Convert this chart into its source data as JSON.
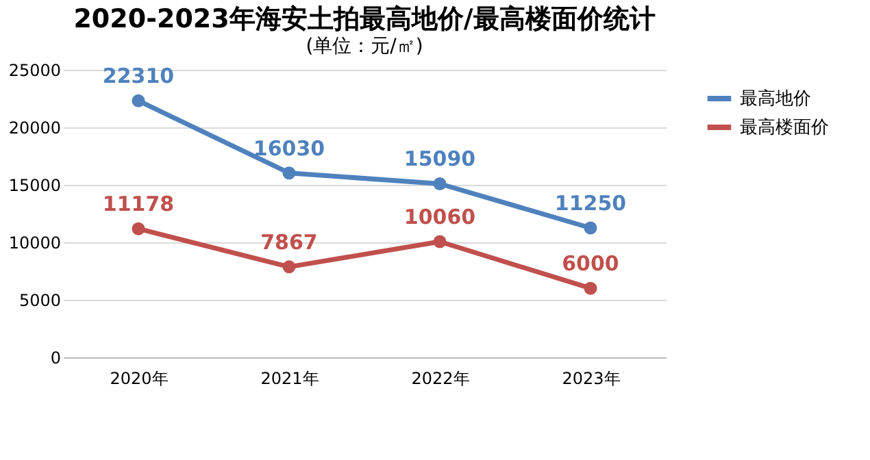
{
  "chart_data": {
    "type": "line",
    "title": "2020-2023年海安土拍最高地价/最高楼面价统计",
    "subtitle": "(单位：元/㎡)",
    "categories": [
      "2020年",
      "2021年",
      "2022年",
      "2023年"
    ],
    "series": [
      {
        "name": "最高地价",
        "color": "#4f81bd",
        "values": [
          22310,
          16030,
          15090,
          11250
        ]
      },
      {
        "name": "最高楼面价",
        "color": "#c0504d",
        "values": [
          11178,
          7867,
          10060,
          6000
        ]
      }
    ],
    "ylim": [
      0,
      25000
    ],
    "yticks": [
      0,
      5000,
      10000,
      15000,
      20000,
      25000
    ],
    "grid": "y",
    "legend": "right",
    "data_labels": true,
    "marker": "circle"
  }
}
